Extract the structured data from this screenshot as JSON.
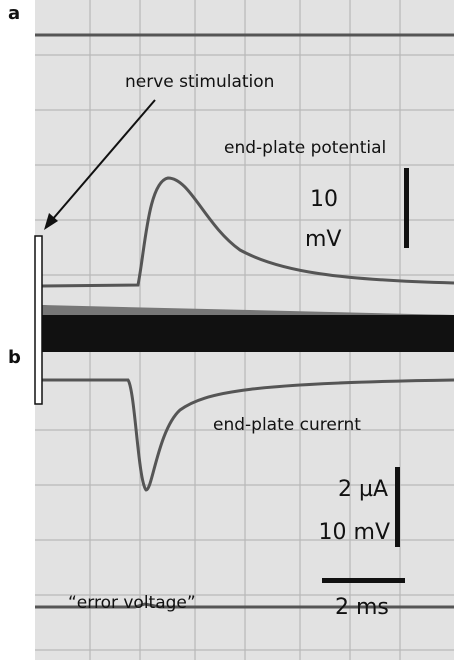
{
  "labels": {
    "panel_a": "a",
    "panel_b": "b",
    "nerve_stimulation": "nerve stimulation",
    "epp": "end-plate potential",
    "epp_scale_value": "10",
    "epp_scale_unit": "mV",
    "current": "end-plate curernt",
    "current_scale_1": "2 µA",
    "current_scale_2": "10 mV",
    "time_scale": "2 ms",
    "error_voltage": "“error voltage”"
  }
}
